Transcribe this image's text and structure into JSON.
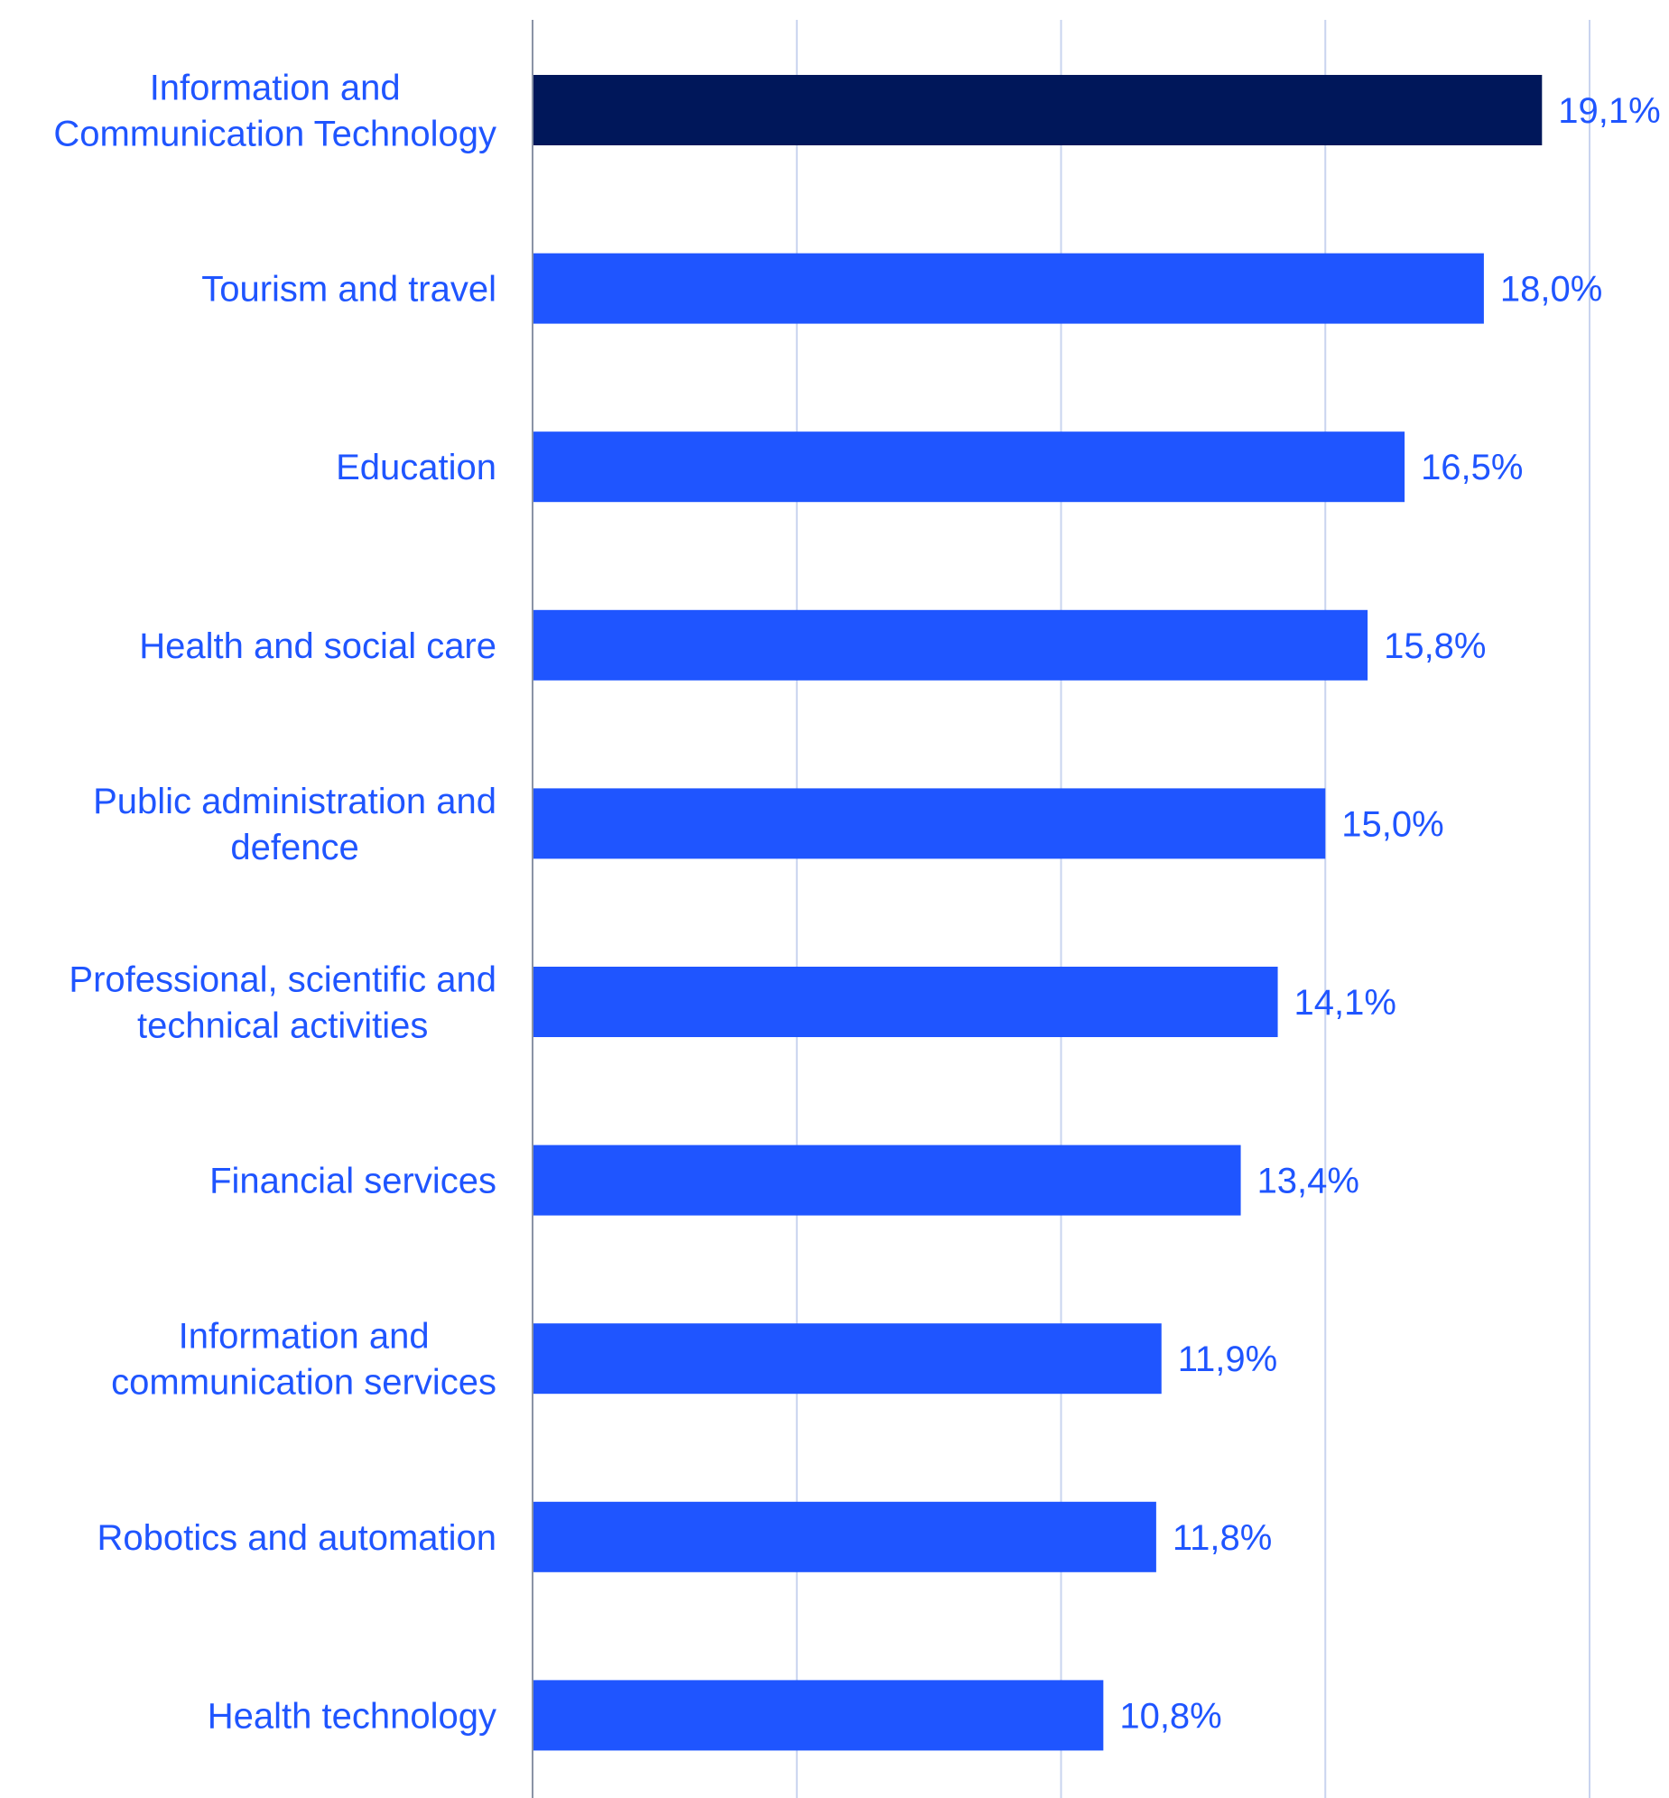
{
  "chart_data": {
    "type": "bar",
    "orientation": "horizontal",
    "categories": [
      [
        "Information and",
        "Communication Technology"
      ],
      [
        "Tourism and travel"
      ],
      [
        "Education"
      ],
      [
        "Health and social care"
      ],
      [
        "Public administration and",
        "defence"
      ],
      [
        "Professional, scientific and",
        "technical activities"
      ],
      [
        "Financial services"
      ],
      [
        "Information and",
        "communication services"
      ],
      [
        "Robotics and automation"
      ],
      [
        "Health technology"
      ]
    ],
    "values": [
      19.1,
      18.0,
      16.5,
      15.8,
      15.0,
      14.1,
      13.4,
      11.9,
      11.8,
      10.8
    ],
    "value_labels": [
      "19,1%",
      "18,0%",
      "16,5%",
      "15,8%",
      "15,0%",
      "14,1%",
      "13,4%",
      "11,9%",
      "11,8%",
      "10,8%"
    ],
    "highlighted_index": 0,
    "xlim": [
      0,
      20
    ],
    "grid": true,
    "gridlines": [
      5,
      10,
      15,
      20
    ],
    "xticks_labeled": false,
    "colors": {
      "bar": "#1f55ff",
      "bar_highlight": "#00175a",
      "label_text": "#1f55ff",
      "grid": "#c9d4ef",
      "axis": "#8a93a6"
    }
  }
}
